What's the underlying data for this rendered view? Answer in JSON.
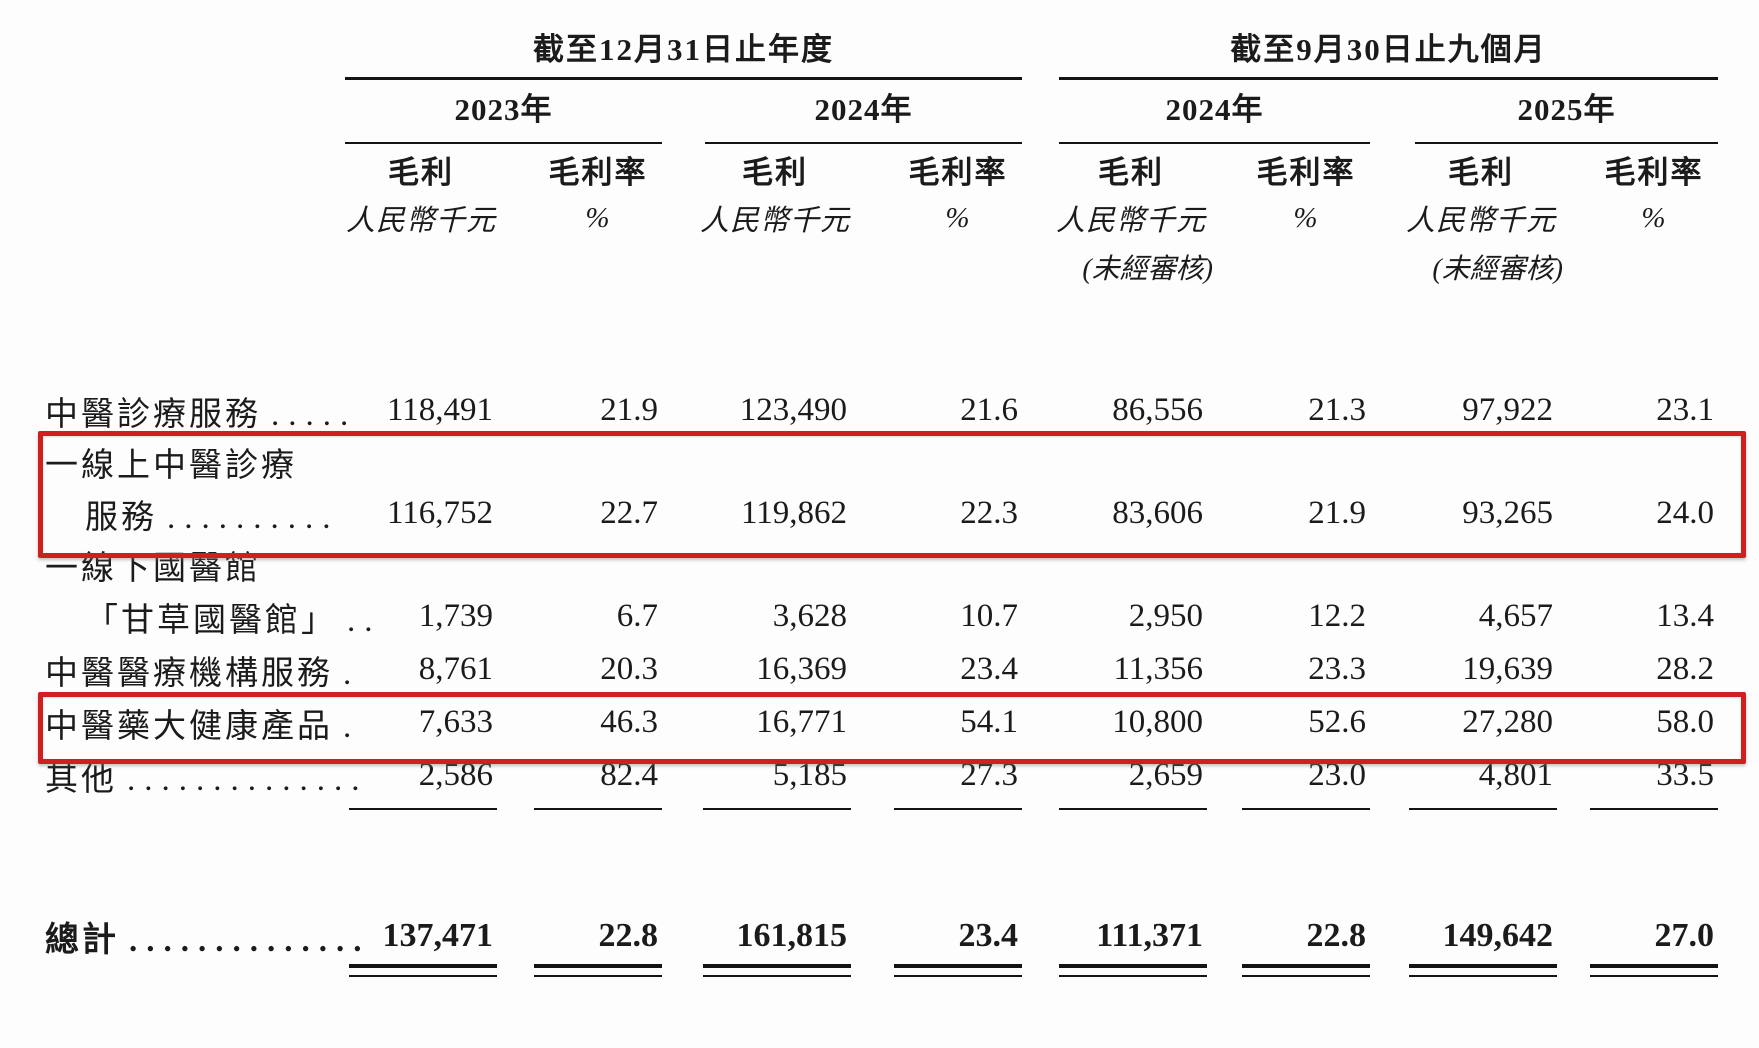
{
  "document": {
    "type": "financial-table",
    "language": "zh-Hant",
    "colors": {
      "highlight_border": "#d01f1f",
      "text": "#1b1b1b",
      "rule": "#141414",
      "background": "#fdfdfd"
    }
  },
  "table": {
    "period_groups": [
      {
        "label": "截至12月31日止年度"
      },
      {
        "label": "截至9月30日止九個月"
      }
    ],
    "years": [
      "2023年",
      "2024年",
      "2024年",
      "2025年"
    ],
    "col_headers": {
      "gp": "毛利",
      "gpm": "毛利率"
    },
    "units": {
      "gp": "人民幣千元",
      "gpm": "%",
      "unaudited": "(未經審核)"
    },
    "rows": [
      {
        "label": "中醫診療服務",
        "label2": "",
        "leader": ".....",
        "highlighted": false,
        "values": [
          "118,491",
          "21.9",
          "123,490",
          "21.6",
          "86,556",
          "21.3",
          "97,922",
          "23.1"
        ]
      },
      {
        "label": "一線上中醫診療",
        "label2": "服務",
        "leader": "..........",
        "highlighted": true,
        "values": [
          "116,752",
          "22.7",
          "119,862",
          "22.3",
          "83,606",
          "21.9",
          "93,265",
          "24.0"
        ]
      },
      {
        "label": "一線下國醫館",
        "label2": "「甘草國醫館」",
        "leader": "..",
        "highlighted": false,
        "values": [
          "1,739",
          "6.7",
          "3,628",
          "10.7",
          "2,950",
          "12.2",
          "4,657",
          "13.4"
        ]
      },
      {
        "label": "中醫醫療機構服務",
        "label2": "",
        "leader": ".",
        "highlighted": false,
        "values": [
          "8,761",
          "20.3",
          "16,369",
          "23.4",
          "11,356",
          "23.3",
          "19,639",
          "28.2"
        ]
      },
      {
        "label": "中醫藥大健康產品",
        "label2": "",
        "leader": ".",
        "highlighted": true,
        "values": [
          "7,633",
          "46.3",
          "16,771",
          "54.1",
          "10,800",
          "52.6",
          "27,280",
          "58.0"
        ]
      },
      {
        "label": "其他",
        "label2": "",
        "leader": "..............",
        "highlighted": false,
        "values": [
          "2,586",
          "82.4",
          "5,185",
          "27.3",
          "2,659",
          "23.0",
          "4,801",
          "33.5"
        ]
      }
    ],
    "total_row": {
      "label": "總計",
      "leader": "..............",
      "values": [
        "137,471",
        "22.8",
        "161,815",
        "23.4",
        "111,371",
        "22.8",
        "149,642",
        "27.0"
      ]
    }
  }
}
